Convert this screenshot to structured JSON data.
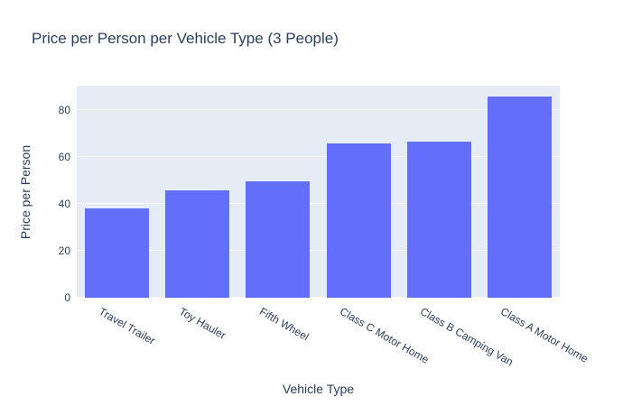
{
  "chart_data": {
    "type": "bar",
    "title": "Price per Person per Vehicle Type (3 People)",
    "xlabel": "Vehicle Type",
    "ylabel": "Price per Person",
    "categories": [
      "Travel Trailer",
      "Toy Hauler",
      "Fifth Wheel",
      "Class C Motor Home",
      "Class B Camping Van",
      "Class A Motor Home"
    ],
    "values": [
      38,
      46,
      49.5,
      66,
      66.5,
      86
    ],
    "ylim": [
      0,
      90.5
    ],
    "yticks": [
      0,
      20,
      40,
      60,
      80
    ],
    "bar_color": "#636efa",
    "plot_bg": "#e5ecf6",
    "grid_color": "#ffffff",
    "text_color": "#2a3f5f",
    "grid": true,
    "legend_position": "none"
  }
}
